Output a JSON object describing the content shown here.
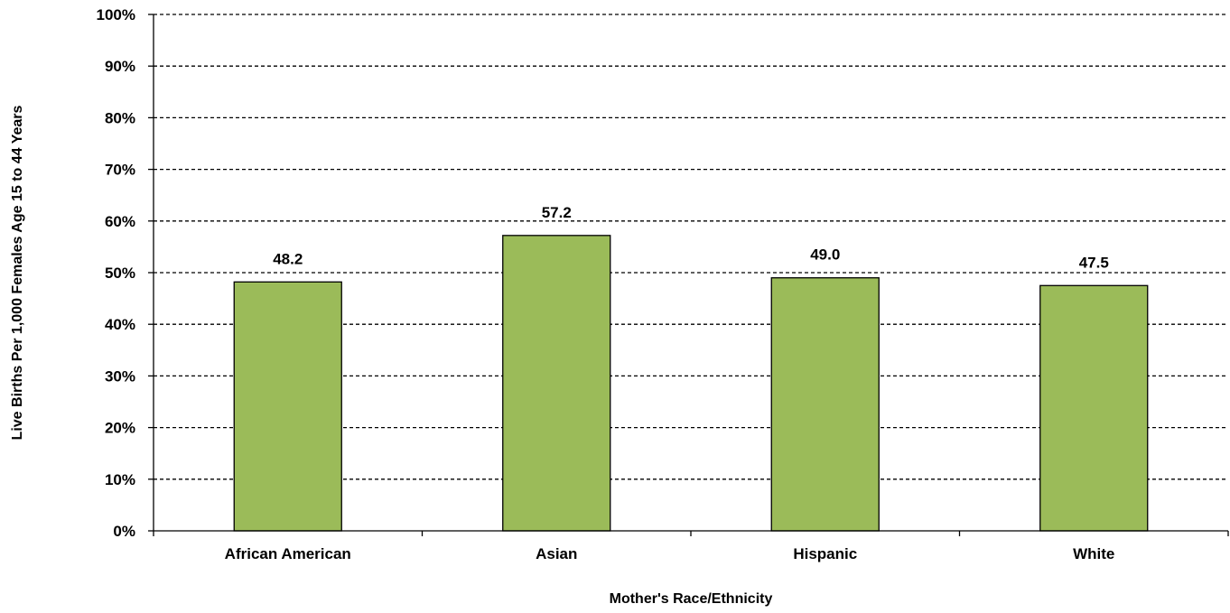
{
  "chart_data": {
    "type": "bar",
    "title": "",
    "xlabel": "Mother's Race/Ethnicity",
    "ylabel": "Live Births Per 1,000 Females Age 15 to 44 Years",
    "categories": [
      "African American",
      "Asian",
      "Hispanic",
      "White"
    ],
    "values": [
      48.2,
      57.2,
      49.0,
      47.5
    ],
    "data_labels": [
      "48.2",
      "57.2",
      "49.0",
      "47.5"
    ],
    "ylim": [
      0,
      100
    ],
    "y_ticks": [
      "0%",
      "10%",
      "20%",
      "30%",
      "40%",
      "50%",
      "60%",
      "70%",
      "80%",
      "90%",
      "100%"
    ],
    "grid": true,
    "grid_style": "dashed",
    "bar_color": "#9BBB59",
    "bar_edge_color": "#000000",
    "legend": "none"
  }
}
